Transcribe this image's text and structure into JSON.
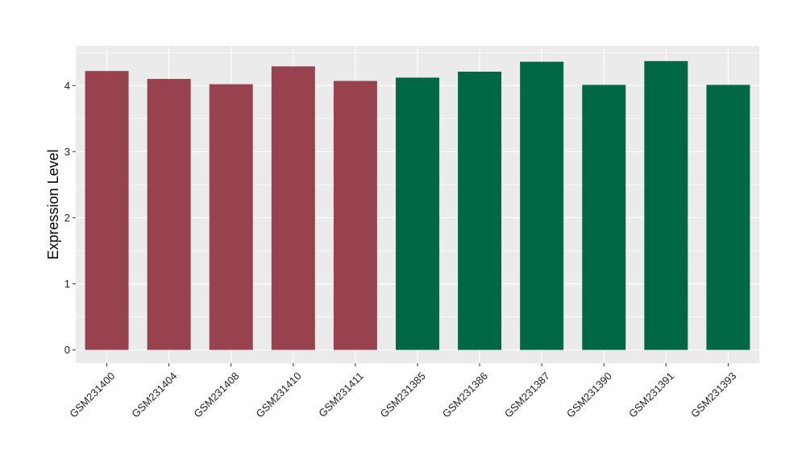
{
  "chart_data": {
    "type": "bar",
    "title": "",
    "xlabel": "",
    "ylabel": "Expression Level",
    "ylim": [
      -0.2,
      4.6
    ],
    "yticks": [
      0,
      1,
      2,
      3,
      4
    ],
    "grid": true,
    "legend": "none",
    "categories": [
      "GSM231400",
      "GSM231404",
      "GSM231408",
      "GSM231410",
      "GSM231411",
      "GSM231385",
      "GSM231386",
      "GSM231387",
      "GSM231390",
      "GSM231391",
      "GSM231393"
    ],
    "values": [
      4.22,
      4.1,
      4.02,
      4.29,
      4.07,
      4.12,
      4.21,
      4.36,
      4.01,
      4.37,
      4.01
    ],
    "groups": [
      "a",
      "a",
      "a",
      "a",
      "a",
      "b",
      "b",
      "b",
      "b",
      "b",
      "b"
    ],
    "group_colors": {
      "a": "#99424f",
      "b": "#006744"
    }
  },
  "colors": {
    "panel_background": "#ebebeb",
    "grid_line": "#ffffff",
    "tick_mark": "#333333"
  }
}
